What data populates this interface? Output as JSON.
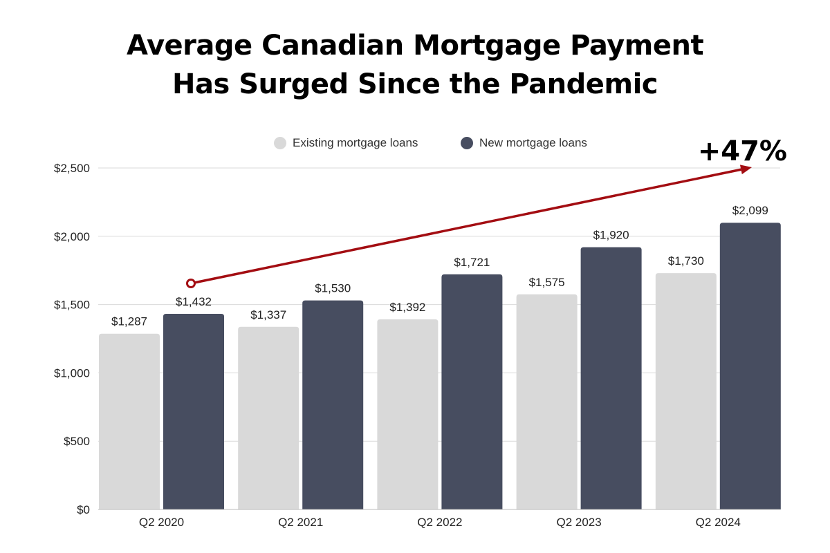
{
  "title": {
    "line1": "Average Canadian Mortgage Payment",
    "line2": "Has Surged Since the Pandemic"
  },
  "colors": {
    "existing": "#d9d9d9",
    "new": "#474d60",
    "arrow": "#a30d12",
    "grid": "#d9d9d9"
  },
  "chart_data": {
    "type": "bar",
    "categories": [
      "Q2 2020",
      "Q2 2021",
      "Q2 2022",
      "Q2 2023",
      "Q2 2024"
    ],
    "series": [
      {
        "name": "Existing mortgage loans",
        "values": [
          1287,
          1337,
          1392,
          1575,
          1730
        ],
        "labels": [
          "$1,287",
          "$1,337",
          "$1,392",
          "$1,575",
          "$1,730"
        ]
      },
      {
        "name": "New mortgage loans",
        "values": [
          1432,
          1530,
          1721,
          1920,
          2099
        ],
        "labels": [
          "$1,432",
          "$1,530",
          "$1,721",
          "$1,920",
          "$2,099"
        ]
      }
    ],
    "ylim": [
      0,
      2500
    ],
    "yticks": [
      0,
      500,
      1000,
      1500,
      2000,
      2500
    ],
    "ytick_labels": [
      "$0",
      "$500",
      "$1,000",
      "$1,500",
      "$2,000",
      "$2,500"
    ],
    "grid": true,
    "legend_position": "top-center",
    "annotation": {
      "text": "+47%"
    }
  }
}
